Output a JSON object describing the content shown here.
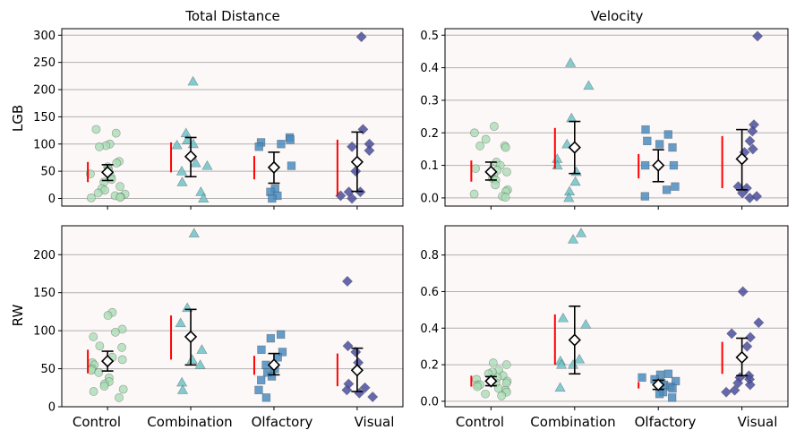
{
  "figure": {
    "column_titles": [
      "Total Distance",
      "Velocity"
    ],
    "row_labels": [
      "LGB",
      "RW"
    ],
    "categories": [
      "Control",
      "Combination",
      "Olfactory",
      "Visual"
    ]
  },
  "colors": {
    "Control": "#a8dcb3",
    "Combination": "#6cc3c8",
    "Olfactory": "#4a8cbf",
    "Visual": "#4a4f9e",
    "range_bar": "#ff0000",
    "panel_bg": "#fdf8f8",
    "grid": "#b0b0b0"
  },
  "markers": {
    "Control": "circle",
    "Combination": "triangle",
    "Olfactory": "square",
    "Visual": "diamond"
  },
  "chart_data": [
    {
      "type": "scatter",
      "title": "Total Distance",
      "ylabel": "LGB",
      "ylim": [
        -14,
        312
      ],
      "yticks": [
        0,
        50,
        100,
        150,
        200,
        250,
        300
      ],
      "grid": true,
      "categories": [
        "Control",
        "Combination",
        "Olfactory",
        "Visual"
      ],
      "series": [
        {
          "points": [
            127,
            120,
            100,
            97,
            95,
            68,
            65,
            58,
            55,
            52,
            45,
            40,
            35,
            30,
            22,
            18,
            15,
            10,
            8,
            5,
            3,
            2,
            1
          ],
          "mean": 48,
          "err_low": 33,
          "err_high": 62,
          "range": [
            30,
            67
          ]
        },
        {
          "points": [
            215,
            120,
            107,
            100,
            98,
            65,
            60,
            50,
            30,
            12,
            0
          ],
          "mean": 77,
          "err_low": 40,
          "err_high": 112,
          "range": [
            48,
            103
          ]
        },
        {
          "points": [
            112,
            108,
            103,
            100,
            95,
            60,
            18,
            12,
            5,
            0
          ],
          "mean": 57,
          "err_low": 28,
          "err_high": 85,
          "range": [
            35,
            78
          ]
        },
        {
          "points": [
            297,
            127,
            100,
            95,
            88,
            50,
            12,
            12,
            5,
            0
          ],
          "mean": 67,
          "err_low": 13,
          "err_high": 122,
          "range": [
            5,
            108
          ]
        }
      ]
    },
    {
      "type": "scatter",
      "title": "Velocity",
      "ylabel": "",
      "ylim": [
        -0.025,
        0.52
      ],
      "yticks": [
        0.0,
        0.1,
        0.2,
        0.3,
        0.4,
        0.5
      ],
      "grid": true,
      "categories": [
        "Control",
        "Combination",
        "Olfactory",
        "Visual"
      ],
      "series": [
        {
          "points": [
            0.22,
            0.2,
            0.18,
            0.16,
            0.16,
            0.155,
            0.11,
            0.1,
            0.09,
            0.085,
            0.08,
            0.07,
            0.06,
            0.055,
            0.04,
            0.025,
            0.02,
            0.012,
            0.005,
            0.002
          ],
          "mean": 0.08,
          "err_low": 0.055,
          "err_high": 0.11,
          "range": [
            0.05,
            0.115
          ]
        },
        {
          "points": [
            0.415,
            0.345,
            0.245,
            0.165,
            0.12,
            0.1,
            0.08,
            0.05,
            0.02,
            0.0
          ],
          "mean": 0.155,
          "err_low": 0.075,
          "err_high": 0.235,
          "range": [
            0.09,
            0.215
          ]
        },
        {
          "points": [
            0.21,
            0.195,
            0.175,
            0.165,
            0.155,
            0.1,
            0.1,
            0.035,
            0.025,
            0.005
          ],
          "mean": 0.1,
          "err_low": 0.05,
          "err_high": 0.148,
          "range": [
            0.06,
            0.135
          ]
        },
        {
          "points": [
            0.497,
            0.225,
            0.205,
            0.175,
            0.15,
            0.14,
            0.035,
            0.03,
            0.015,
            0.005,
            0.0
          ],
          "mean": 0.12,
          "err_low": 0.025,
          "err_high": 0.21,
          "range": [
            0.03,
            0.19
          ]
        }
      ]
    },
    {
      "type": "scatter",
      "title": "",
      "ylabel": "RW",
      "ylim": [
        0,
        238
      ],
      "yticks": [
        0,
        50,
        100,
        150,
        200
      ],
      "grid": true,
      "categories": [
        "Control",
        "Combination",
        "Olfactory",
        "Visual"
      ],
      "series": [
        {
          "points": [
            124,
            120,
            102,
            98,
            92,
            80,
            78,
            65,
            62,
            58,
            55,
            50,
            48,
            45,
            38,
            33,
            30,
            27,
            23,
            20,
            12
          ],
          "mean": 60,
          "err_low": 47,
          "err_high": 73,
          "range": [
            44,
            75
          ]
        },
        {
          "points": [
            228,
            130,
            110,
            75,
            62,
            55,
            32,
            22
          ],
          "mean": 92,
          "err_low": 55,
          "err_high": 128,
          "range": [
            62,
            120
          ]
        },
        {
          "points": [
            95,
            90,
            75,
            72,
            65,
            55,
            50,
            45,
            40,
            35,
            22,
            12
          ],
          "mean": 55,
          "err_low": 42,
          "err_high": 70,
          "range": [
            42,
            67
          ]
        },
        {
          "points": [
            165,
            80,
            72,
            58,
            30,
            25,
            22,
            18,
            13
          ],
          "mean": 48,
          "err_low": 20,
          "err_high": 77,
          "range": [
            27,
            70
          ]
        }
      ]
    },
    {
      "type": "scatter",
      "title": "",
      "ylabel": "",
      "ylim": [
        -0.03,
        0.96
      ],
      "yticks": [
        0.0,
        0.2,
        0.4,
        0.6,
        0.8
      ],
      "grid": true,
      "categories": [
        "Control",
        "Combination",
        "Olfactory",
        "Visual"
      ],
      "series": [
        {
          "points": [
            0.21,
            0.2,
            0.17,
            0.16,
            0.15,
            0.14,
            0.13,
            0.12,
            0.11,
            0.1,
            0.1,
            0.09,
            0.09,
            0.08,
            0.07,
            0.06,
            0.05,
            0.04,
            0.03
          ],
          "mean": 0.11,
          "err_low": 0.085,
          "err_high": 0.135,
          "range": [
            0.08,
            0.14
          ]
        },
        {
          "points": [
            0.92,
            0.885,
            0.455,
            0.42,
            0.23,
            0.22,
            0.2,
            0.2,
            0.075
          ],
          "mean": 0.335,
          "err_low": 0.15,
          "err_high": 0.52,
          "range": [
            0.2,
            0.475
          ]
        },
        {
          "points": [
            0.15,
            0.145,
            0.13,
            0.12,
            0.11,
            0.1,
            0.09,
            0.08,
            0.07,
            0.05,
            0.04,
            0.02
          ],
          "mean": 0.09,
          "err_low": 0.065,
          "err_high": 0.115,
          "range": [
            0.07,
            0.105
          ]
        },
        {
          "points": [
            0.6,
            0.43,
            0.37,
            0.35,
            0.3,
            0.14,
            0.13,
            0.12,
            0.1,
            0.09,
            0.06,
            0.05
          ],
          "mean": 0.24,
          "err_low": 0.14,
          "err_high": 0.345,
          "range": [
            0.15,
            0.325
          ]
        }
      ]
    }
  ]
}
